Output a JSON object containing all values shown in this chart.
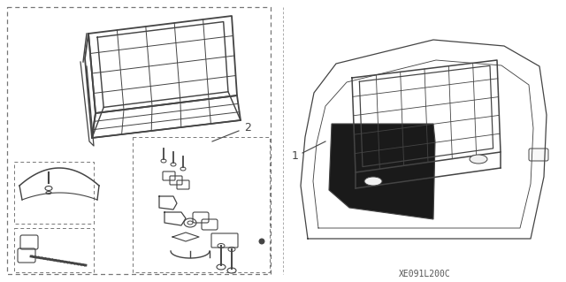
{
  "bg_color": "#ffffff",
  "line_color": "#444444",
  "dashed_color": "#888888",
  "label_1": "1",
  "label_2": "2",
  "code_text": "XE091L200C",
  "code_fontsize": 7,
  "label_fontsize": 9,
  "figsize": [
    6.4,
    3.19
  ],
  "dpi": 100
}
